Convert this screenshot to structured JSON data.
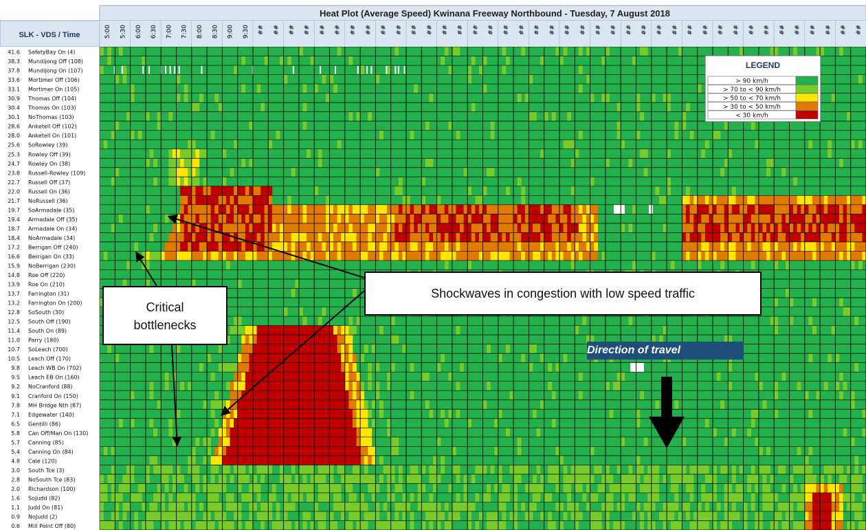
{
  "chart_data": {
    "type": "heatmap",
    "title": "Heat Plot (Average Speed) Kwinana Freeway Northbound - Tuesday, 7 August 2018",
    "row_header": "SLK - VDS / Time",
    "x_ticks": [
      "5:00",
      "5:30",
      "6:00",
      "6:30",
      "7:00",
      "7:30",
      "8:00",
      "8:30",
      "9:00",
      "9:30",
      "##",
      "##",
      "##",
      "##",
      "##",
      "##",
      "##",
      "##",
      "##",
      "##",
      "##",
      "##",
      "##",
      "##",
      "##",
      "##",
      "##",
      "##",
      "##",
      "##",
      "##",
      "##",
      "##",
      "##",
      "##",
      "##",
      "##",
      "##",
      "##",
      "##",
      "##",
      "##",
      "##",
      "##",
      "##",
      "##",
      "##",
      "##",
      "##",
      "##"
    ],
    "rows": [
      {
        "slk": "41.6",
        "name": "SafetyBay On (4)"
      },
      {
        "slk": "38.3",
        "name": "Mundijong Off (108)"
      },
      {
        "slk": "37.8",
        "name": "Mundijong On (107)"
      },
      {
        "slk": "33.6",
        "name": "Mortimer Off (106)"
      },
      {
        "slk": "33.1",
        "name": "Mortimer On (105)"
      },
      {
        "slk": "30.9",
        "name": "Thomas Off (104)"
      },
      {
        "slk": "30.4",
        "name": "Thomas On (103)"
      },
      {
        "slk": "30.1",
        "name": "NoThomas (103)"
      },
      {
        "slk": "28.6",
        "name": "Anketell Off (102)"
      },
      {
        "slk": "28.0",
        "name": "Anketell On (101)"
      },
      {
        "slk": "25.6",
        "name": "SoRowley (39)"
      },
      {
        "slk": "25.3",
        "name": "Rowley Off (39)"
      },
      {
        "slk": "24.7",
        "name": "Rowley On (38)"
      },
      {
        "slk": "23.8",
        "name": "Russell-Rowley (109)"
      },
      {
        "slk": "22.7",
        "name": "Russell Off (37)"
      },
      {
        "slk": "22.0",
        "name": "Russell On (36)"
      },
      {
        "slk": "21.7",
        "name": "NoRussell (36)"
      },
      {
        "slk": "19.7",
        "name": "SoArmadale (35)"
      },
      {
        "slk": "19.4",
        "name": "Armadale Off (35)"
      },
      {
        "slk": "18.7",
        "name": "Armadale On (34)"
      },
      {
        "slk": "18.4",
        "name": "NoArmadale (34)"
      },
      {
        "slk": "17.2",
        "name": "Berrigan Off (240)"
      },
      {
        "slk": "16.6",
        "name": "Berrigan On (33)"
      },
      {
        "slk": "15.9",
        "name": "NoBerrigan (230)"
      },
      {
        "slk": "14.8",
        "name": "Roe Off (220)"
      },
      {
        "slk": "13.9",
        "name": "Roe On (210)"
      },
      {
        "slk": "13.7",
        "name": "Farrington (31)"
      },
      {
        "slk": "13.2",
        "name": "Farrington On (200)"
      },
      {
        "slk": "12.8",
        "name": "SoSouth (30)"
      },
      {
        "slk": "12.5",
        "name": "South Off (190)"
      },
      {
        "slk": "11.4",
        "name": "South On (89)"
      },
      {
        "slk": "11.0",
        "name": "Parry (180)"
      },
      {
        "slk": "10.7",
        "name": "SoLeach (700)"
      },
      {
        "slk": "10.5",
        "name": "Leach Off (170)"
      },
      {
        "slk": "9.8",
        "name": "Leach WB On (702)"
      },
      {
        "slk": "9.5",
        "name": "Leach EB On (160)"
      },
      {
        "slk": "9.2",
        "name": "NoCranford (88)"
      },
      {
        "slk": "9.1",
        "name": "Cranford On (150)"
      },
      {
        "slk": "7.8",
        "name": "MH Bridge Nth (87)"
      },
      {
        "slk": "7.1",
        "name": "Edgewater (140)"
      },
      {
        "slk": "6.5",
        "name": "Gentilli (86)"
      },
      {
        "slk": "5.8",
        "name": "Can Off/Man On (130)"
      },
      {
        "slk": "5.7",
        "name": "Canning (85)"
      },
      {
        "slk": "5.4",
        "name": "Canning On (84)"
      },
      {
        "slk": "4.8",
        "name": "Cale (120)"
      },
      {
        "slk": "3.0",
        "name": "South Tce (3)"
      },
      {
        "slk": "2.8",
        "name": "NoSouth Tce (83)"
      },
      {
        "slk": "2.0",
        "name": "Richardson (100)"
      },
      {
        "slk": "1.6",
        "name": "SoJudd (82)"
      },
      {
        "slk": "1.1",
        "name": "Judd On (81)"
      },
      {
        "slk": "0.9",
        "name": "NoJudd (2)"
      },
      {
        "slk": "0.6",
        "name": "Mill Point Off (80)"
      }
    ],
    "legend": {
      "title": "LEGEND",
      "entries": [
        {
          "label": "> 90 km/h",
          "color": "#22b14c"
        },
        {
          "label": "> 70 to < 90 km/h",
          "color": "#77cc2a"
        },
        {
          "label": "> 50 to < 70 km/h",
          "color": "#ffe600"
        },
        {
          "label": "> 30 to < 50 km/h",
          "color": "#e07b00"
        },
        {
          "label": "< 30 km/h",
          "color": "#c00000"
        }
      ],
      "placement": "top-right"
    },
    "congestion_regions": [
      {
        "level": "< 30 km/h",
        "rows": [
          15,
          21
        ],
        "time": [
          "6:30",
          "7:45"
        ]
      },
      {
        "level": "> 30 to < 50 km/h",
        "rows": [
          17,
          22
        ],
        "time": [
          "6:00",
          "13:00"
        ]
      },
      {
        "level": "< 30 km/h",
        "rows": [
          30,
          44
        ],
        "time": [
          "7:00",
          "9:00"
        ]
      },
      {
        "level": "> 30 to < 50 km/h",
        "rows": [
          17,
          22
        ],
        "time": [
          "14:30",
          "17:30"
        ]
      },
      {
        "level": "> 30 to < 50 km/h",
        "rows": [
          47,
          51
        ],
        "time": [
          "16:30",
          "17:00"
        ]
      }
    ],
    "grid": true
  },
  "annotations": {
    "shockwaves": "Shockwaves in congestion with low speed traffic",
    "bottlenecks_line1": "Critical",
    "bottlenecks_line2": "bottlenecks",
    "direction": "Direction of travel"
  },
  "colors": {
    "header_bg": "#dce6f1",
    "grid_line": "#000000",
    "arrow": "#000000",
    "direction_bg": "#1e4e79"
  }
}
